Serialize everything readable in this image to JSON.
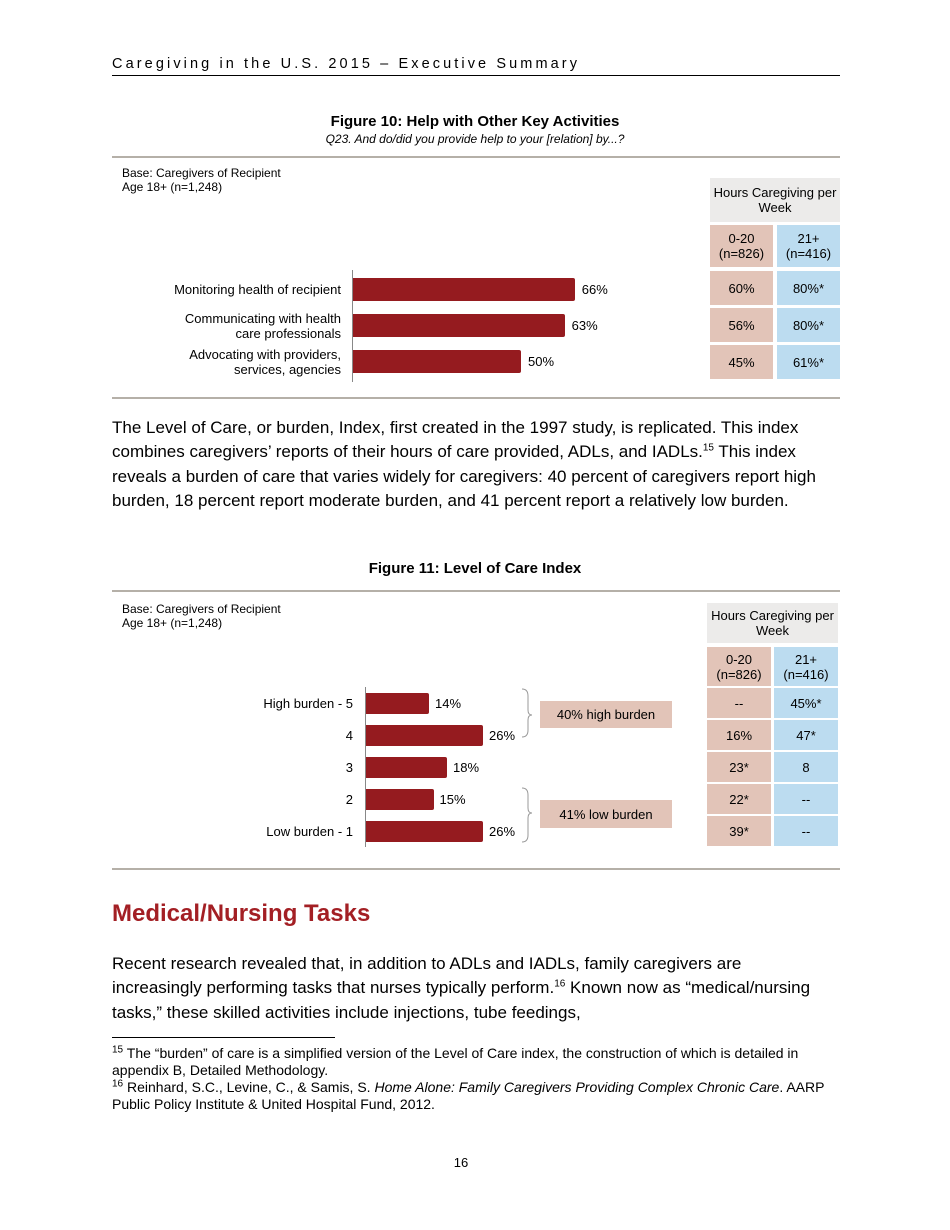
{
  "header": {
    "running_title": "Caregiving in the U.S. 2015 – Executive Summary"
  },
  "figure10": {
    "title": "Figure 10: Help with Other Key Activities",
    "question": "Q23. And do/did you provide help to your [relation] by...?",
    "base": [
      "Base: Caregivers of Recipient",
      "Age 18+ (n=1,248)"
    ],
    "table_header": "Hours Caregiving per Week",
    "col_headers": [
      {
        "range": "0-20",
        "n": "(n=826)"
      },
      {
        "range": "21+",
        "n": "(n=416)"
      }
    ],
    "rows": [
      {
        "label": [
          "Monitoring health of recipient"
        ],
        "value": 66,
        "value_label": "66%",
        "c1": "60%",
        "c2": "80%*"
      },
      {
        "label": [
          "Communicating with health",
          "care professionals"
        ],
        "value": 63,
        "value_label": "63%",
        "c1": "56%",
        "c2": "80%*"
      },
      {
        "label": [
          "Advocating with providers,",
          "services, agencies"
        ],
        "value": 50,
        "value_label": "50%",
        "c1": "45%",
        "c2": "61%*"
      }
    ]
  },
  "paragraph1": {
    "text": "The Level of Care, or burden, Index, first created in the 1997 study, is replicated. This index combines caregivers’ reports of their hours of care provided, ADLs, and IADLs.",
    "sup": "15",
    "text2": " This index reveals a burden of care that varies widely for caregivers: 40 percent of caregivers report high burden, 18 percent report moderate burden, and 41 percent report a relatively low burden."
  },
  "figure11": {
    "title": "Figure 11: Level of Care Index",
    "base": [
      "Base: Caregivers of Recipient",
      "Age 18+ (n=1,248)"
    ],
    "table_header": "Hours Caregiving per Week",
    "col_headers": [
      {
        "range": "0-20",
        "n": "(n=826)"
      },
      {
        "range": "21+",
        "n": "(n=416)"
      }
    ],
    "rows": [
      {
        "label": "High burden - 5",
        "value": 14,
        "value_label": "14%",
        "c1": "--",
        "c2": "45%*"
      },
      {
        "label": "4",
        "value": 26,
        "value_label": "26%",
        "c1": "16%",
        "c2": "47*"
      },
      {
        "label": "3",
        "value": 18,
        "value_label": "18%",
        "c1": "23*",
        "c2": "8"
      },
      {
        "label": "2",
        "value": 15,
        "value_label": "15%",
        "c1": "22*",
        "c2": "--"
      },
      {
        "label": "Low burden - 1",
        "value": 26,
        "value_label": "26%",
        "c1": "39*",
        "c2": "--"
      }
    ],
    "groups": {
      "high": "40% high burden",
      "low": "41% low burden"
    }
  },
  "section": {
    "heading": "Medical/Nursing Tasks",
    "text": "Recent research revealed that, in addition to ADLs and IADLs, family caregivers are increasingly performing tasks that nurses typically perform.",
    "sup": "16",
    "text2": " Known now as “medical/nursing tasks,” these skilled activities include injections, tube feedings,"
  },
  "footnotes": [
    {
      "num": "15",
      "text": " The “burden” of care is a simplified version of the Level of Care index, the construction of which is detailed in appendix B, Detailed Methodology."
    },
    {
      "num": "16",
      "text": " Reinhard, S.C., Levine, C., & Samis, S. ",
      "italic": "Home Alone: Family Caregivers Providing Complex Chronic Care",
      "text2": ". AARP Public Policy Institute & United Hospital Fund, 2012."
    }
  ],
  "page_number": "16",
  "colors": {
    "bar": "#951b1f",
    "col1": "#e2c4b8",
    "col2": "#bcdcf0",
    "heading": "#a31f24"
  },
  "chart_data": [
    {
      "type": "bar",
      "orientation": "horizontal",
      "title": "Figure 10: Help with Other Key Activities",
      "categories": [
        "Monitoring health of recipient",
        "Communicating with health care professionals",
        "Advocating with providers, services, agencies"
      ],
      "values": [
        66,
        63,
        50
      ]
    },
    {
      "type": "bar",
      "orientation": "horizontal",
      "title": "Figure 11: Level of Care Index",
      "categories": [
        "High burden - 5",
        "4",
        "3",
        "2",
        "Low burden - 1"
      ],
      "values": [
        14,
        26,
        18,
        15,
        26
      ]
    }
  ]
}
